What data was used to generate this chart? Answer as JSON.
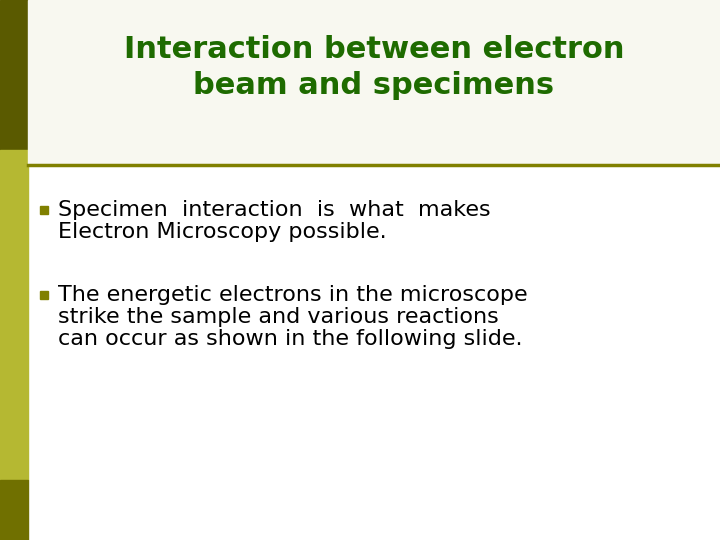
{
  "title_line1": "Interaction between electron",
  "title_line2": "beam and specimens",
  "title_color": "#1e6b00",
  "divider_color": "#808000",
  "sidebar_top_color": "#5a5a00",
  "sidebar_mid_color": "#b5b832",
  "sidebar_bot_color": "#707000",
  "bg_color": "#ffffff",
  "bullet_color": "#000000",
  "bullet_square_color": "#808000",
  "bullet1_line1": "Specimen  interaction  is  what  makes",
  "bullet1_line2": "Electron Microscopy possible.",
  "bullet2_line1": "The energetic electrons in the microscope",
  "bullet2_line2": "strike the sample and various reactions",
  "bullet2_line3": "can occur as shown in the following slide.",
  "title_fontsize": 22,
  "body_fontsize": 16,
  "title_bg_color": "#f5f5dc"
}
